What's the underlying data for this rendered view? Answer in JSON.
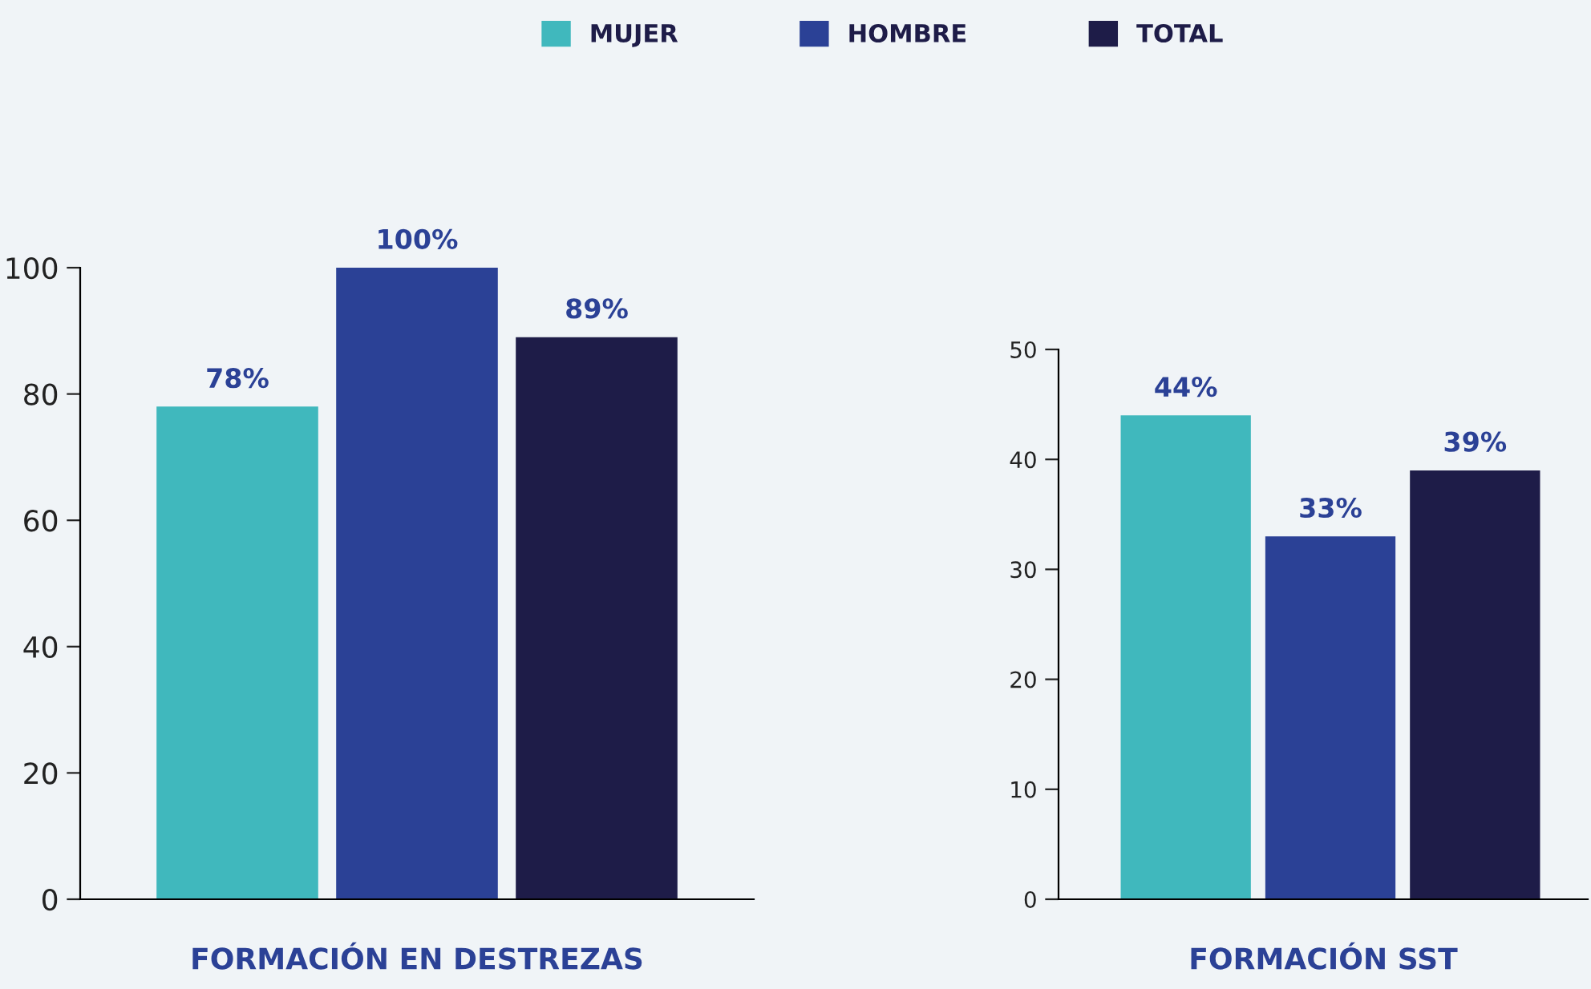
{
  "chart_data": [
    {
      "type": "bar",
      "categories": [
        null
      ],
      "xlabel": "FORMACIÓN EN DESTREZAS",
      "ylim": [
        0,
        100
      ],
      "yticks": [
        0,
        20,
        40,
        60,
        80,
        100
      ],
      "legend": "top",
      "grid": false,
      "series": [
        {
          "name": "MUJER",
          "color": "#40b8bd",
          "values": [
            78
          ],
          "value_labels": [
            "78%"
          ]
        },
        {
          "name": "HOMBRE",
          "color": "#2b4196",
          "values": [
            100
          ],
          "value_labels": [
            "100%"
          ]
        },
        {
          "name": "TOTAL",
          "color": "#1e1c48",
          "values": [
            89
          ],
          "value_labels": [
            "89%"
          ]
        }
      ]
    },
    {
      "type": "bar",
      "categories": [
        null
      ],
      "xlabel": "FORMACIÓN SST",
      "ylim": [
        0,
        50
      ],
      "yticks": [
        0,
        10,
        20,
        30,
        40,
        50
      ],
      "grid": false,
      "series": [
        {
          "color": "#40b8bd",
          "values": [
            44
          ],
          "value_labels": [
            "44%"
          ]
        },
        {
          "color": "#2b4196",
          "values": [
            33
          ],
          "value_labels": [
            "33%"
          ]
        },
        {
          "color": "#1e1c48",
          "values": [
            39
          ],
          "value_labels": [
            "39%"
          ]
        }
      ]
    }
  ]
}
